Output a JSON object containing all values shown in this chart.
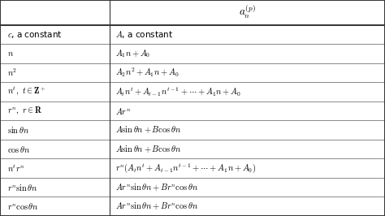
{
  "title_col2": "$a_n^{(p)}$",
  "col1": [
    "$c$, a constant",
    "$n$",
    "$n^2$",
    "$n^t,\\ t \\in \\mathbf{Z}^+$",
    "$r^n,\\ r \\in \\mathbf{R}$",
    "$\\sin\\theta n$",
    "$\\cos\\theta n$",
    "$n^t r^n$",
    "$r^n \\sin\\theta n$",
    "$r^n \\cos\\theta n$"
  ],
  "col2": [
    "$A$, a constant",
    "$A_1 n + A_0$",
    "$A_2 n^2 + A_1 n + A_0$",
    "$A_t n^t + A_{t-1} n^{t-1} + \\cdots + A_1 n + A_0$",
    "$Ar^n$",
    "$A \\sin\\theta n + B \\cos\\theta n$",
    "$A \\sin\\theta n + B \\cos\\theta n$",
    "$r^n(A_t n^t + A_{t-1} n^{t-1} + \\cdots + A_1 n + A_0)$",
    "$Ar^n \\sin\\theta n + Br^n \\cos\\theta n$",
    "$Ar^n \\sin\\theta n + Br^n \\cos\\theta n$"
  ],
  "bg_color": "#ffffff",
  "header_bg": "#ffffff",
  "border_color": "#333333",
  "text_color": "#000000",
  "fontsize": 7.5,
  "header_fontsize": 9.5,
  "col_split": 0.285
}
